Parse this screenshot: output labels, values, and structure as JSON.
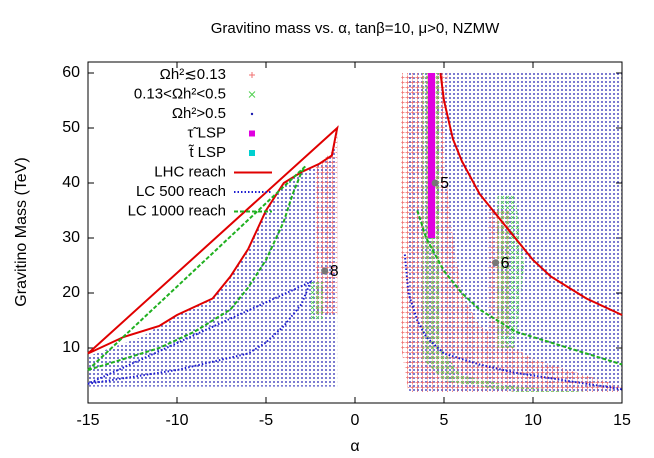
{
  "chart_data": {
    "type": "scatter",
    "title": "Gravitino mass vs. α, tanβ=10, μ>0, NZMW",
    "xlabel": "α",
    "ylabel": "Gravitino Mass (TeV)",
    "xlim": [
      -15,
      15
    ],
    "ylim": [
      0,
      62
    ],
    "xticks": [
      -15,
      -10,
      -5,
      0,
      5,
      10,
      15
    ],
    "yticks": [
      10,
      20,
      30,
      40,
      50,
      60
    ],
    "regions": [
      {
        "name": "Ωh²>0.5",
        "color": "#1c1cb0",
        "marker": "dot",
        "x": [
          -15,
          -15,
          -12,
          -10,
          -8,
          -7,
          -6,
          -5,
          -4,
          -3,
          -2,
          -1.3,
          -1,
          -1,
          null,
          3,
          15,
          15,
          3
        ],
        "y": [
          3,
          8.5,
          12,
          16,
          19,
          23,
          28,
          35,
          40,
          42,
          43.5,
          45,
          51,
          3,
          null,
          60,
          60,
          2,
          2
        ]
      },
      {
        "name": "Ωh²≲0.13",
        "color": "#f07070",
        "marker": "plus",
        "x": [
          -2.2,
          -2.2,
          -1.2,
          -1,
          -1,
          null,
          2.6,
          5.2,
          5,
          5.5,
          6,
          7,
          10,
          15,
          15,
          3,
          2.6,
          null,
          7.5,
          7.5,
          8.7,
          8.7
        ],
        "y": [
          16,
          43,
          46,
          50,
          16,
          null,
          60,
          60,
          45,
          30,
          20,
          14,
          8,
          3,
          2,
          2,
          10,
          null,
          12,
          35,
          35,
          12
        ]
      },
      {
        "name": "0.13<Ωh²<0.5",
        "color": "#50d050",
        "marker": "cross",
        "x": [
          -2.5,
          -2.5,
          -1.8,
          -1.8,
          null,
          3.8,
          4.8,
          4.8,
          6,
          9,
          13,
          9,
          5,
          3.8,
          null,
          8,
          8,
          9,
          9.5,
          9
        ],
        "y": [
          15,
          22,
          22,
          15,
          null,
          60,
          60,
          10,
          5,
          3,
          2,
          2,
          4,
          8,
          null,
          10,
          38,
          38,
          25,
          10
        ]
      },
      {
        "name": "τ̃ LSP",
        "color": "#e000e0",
        "marker": "square",
        "x": [
          4.1,
          4.1,
          4.5,
          4.5
        ],
        "y": [
          30,
          60,
          60,
          30
        ]
      },
      {
        "name": "t̃ LSP",
        "color": "#00d0d0",
        "marker": "square",
        "x": [],
        "y": []
      }
    ],
    "series": [
      {
        "name": "LHC reach",
        "color": "#e00000",
        "dash": "solid",
        "x": [
          -15,
          -13,
          -11,
          -10,
          -8,
          -7,
          -6,
          -5,
          -4,
          -3,
          -2,
          -1.3,
          -1,
          null,
          4.8,
          5,
          5.5,
          6,
          7,
          8,
          9,
          10,
          11,
          12,
          13,
          14,
          15
        ],
        "y": [
          9,
          12,
          14,
          16,
          19,
          23,
          28,
          35,
          40,
          42,
          43.5,
          45,
          50,
          null,
          60,
          55,
          48,
          44,
          38,
          34,
          30,
          26,
          23,
          21,
          19,
          17.5,
          16
        ]
      },
      {
        "name": "LC 500 reach",
        "color": "#1c1cd0",
        "dash": "dot",
        "x": [
          -15,
          -12,
          -10,
          -8,
          -6,
          -5,
          -4,
          -3,
          -2.5,
          null,
          2.8,
          3,
          3.5,
          4,
          5,
          7,
          9,
          11,
          13,
          15
        ],
        "y": [
          3.5,
          5,
          6,
          7.5,
          9,
          11,
          14,
          18,
          22,
          null,
          27,
          20,
          15,
          12,
          9,
          7,
          5.5,
          4.5,
          3.5,
          2.5
        ]
      },
      {
        "name": "LC 1000 reach",
        "color": "#20b020",
        "dash": "dash",
        "x": [
          -15,
          -13,
          -11,
          -9,
          -7,
          -6,
          -5,
          -4,
          -3.5,
          -3,
          -2.8,
          null,
          3.5,
          4,
          5,
          6,
          7,
          8,
          9,
          11,
          13,
          15
        ],
        "y": [
          6,
          8,
          10,
          13,
          17,
          21,
          26,
          33,
          38,
          42,
          43,
          null,
          35,
          30,
          24,
          20,
          17,
          15,
          13,
          11,
          9,
          7
        ]
      }
    ],
    "points": [
      {
        "x": -1.7,
        "y": 24,
        "label": "8"
      },
      {
        "x": 4.5,
        "y": 40,
        "label": "5"
      },
      {
        "x": 7.9,
        "y": 25.5,
        "label": "6"
      }
    ]
  }
}
